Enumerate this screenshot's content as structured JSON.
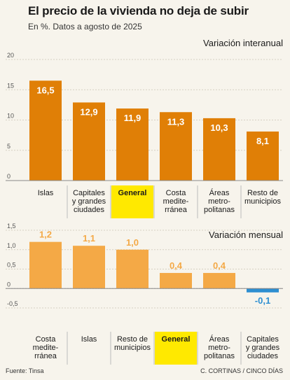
{
  "title": "El precio de la vivienda no deja de subir",
  "subtitle": "En %. Datos a agosto de 2025",
  "colors": {
    "annual_bar": "#e07f06",
    "monthly_bar": "#f4a946",
    "highlight": "#ffe900",
    "negative_bar": "#2e8fd1",
    "grid": "#d6d0c2"
  },
  "chart_data": [
    {
      "type": "bar",
      "title": "Variación interanual",
      "categories": [
        [
          "Islas"
        ],
        [
          "Capitales",
          "y grandes",
          "ciudades"
        ],
        [
          "General"
        ],
        [
          "Costa",
          "medite-",
          "rránea"
        ],
        [
          "Áreas",
          "metro-",
          "politanas"
        ],
        [
          "Resto de",
          "municipios"
        ]
      ],
      "values": [
        16.5,
        12.9,
        11.9,
        11.3,
        10.3,
        8.1
      ],
      "value_labels": [
        "16,5",
        "12,9",
        "11,9",
        "11,3",
        "10,3",
        "8,1"
      ],
      "highlight_index": 2,
      "yticks": [
        0,
        5,
        10,
        15,
        20
      ],
      "ytick_labels": [
        "0",
        "5",
        "10",
        "15",
        "20"
      ],
      "ylim": [
        0,
        20
      ],
      "grid": true
    },
    {
      "type": "bar",
      "title": "Variación mensual",
      "categories": [
        [
          "Costa",
          "medite-",
          "rránea"
        ],
        [
          "Islas"
        ],
        [
          "Resto de",
          "municipios"
        ],
        [
          "General"
        ],
        [
          "Áreas",
          "metro-",
          "politanas"
        ],
        [
          "Capitales",
          "y grandes",
          "ciudades"
        ]
      ],
      "values": [
        1.2,
        1.1,
        1.0,
        0.4,
        0.4,
        -0.1
      ],
      "value_labels": [
        "1,2",
        "1,1",
        "1,0",
        "0,4",
        "0,4",
        "-0,1"
      ],
      "highlight_index": 3,
      "yticks": [
        -0.5,
        0,
        0.5,
        1.0,
        1.5
      ],
      "ytick_labels": [
        "-0,5",
        "0",
        "0,5",
        "1,0",
        "1,5"
      ],
      "ylim": [
        -0.5,
        1.5
      ],
      "grid": true
    }
  ],
  "footer": {
    "source": "Fuente: Tinsa",
    "credit": "C. CORTINAS / CINCO DÍAS"
  }
}
